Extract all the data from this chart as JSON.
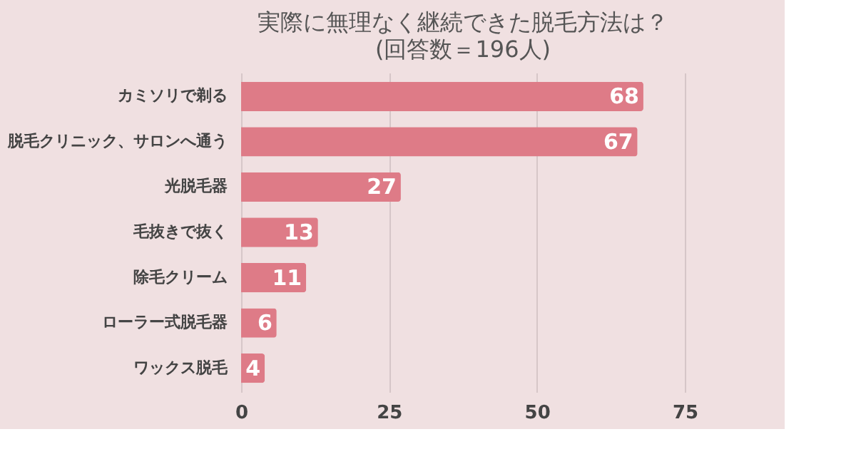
{
  "chart_data": {
    "type": "bar",
    "orientation": "horizontal",
    "title": "実際に無理なく継続できた脱毛方法は？",
    "subtitle": "(回答数＝196人)",
    "categories": [
      "カミソリで剃る",
      "脱毛クリニック、サロンへ通う",
      "光脱毛器",
      "毛抜きで抜く",
      "除毛クリーム",
      "ローラー式脱毛器",
      "ワックス脱毛"
    ],
    "values": [
      68,
      67,
      27,
      13,
      11,
      6,
      4
    ],
    "color": "#de7b87",
    "xlim": [
      0,
      75
    ],
    "xticks": [
      0,
      25,
      50,
      75
    ],
    "grid": "x",
    "data_labels": true
  }
}
